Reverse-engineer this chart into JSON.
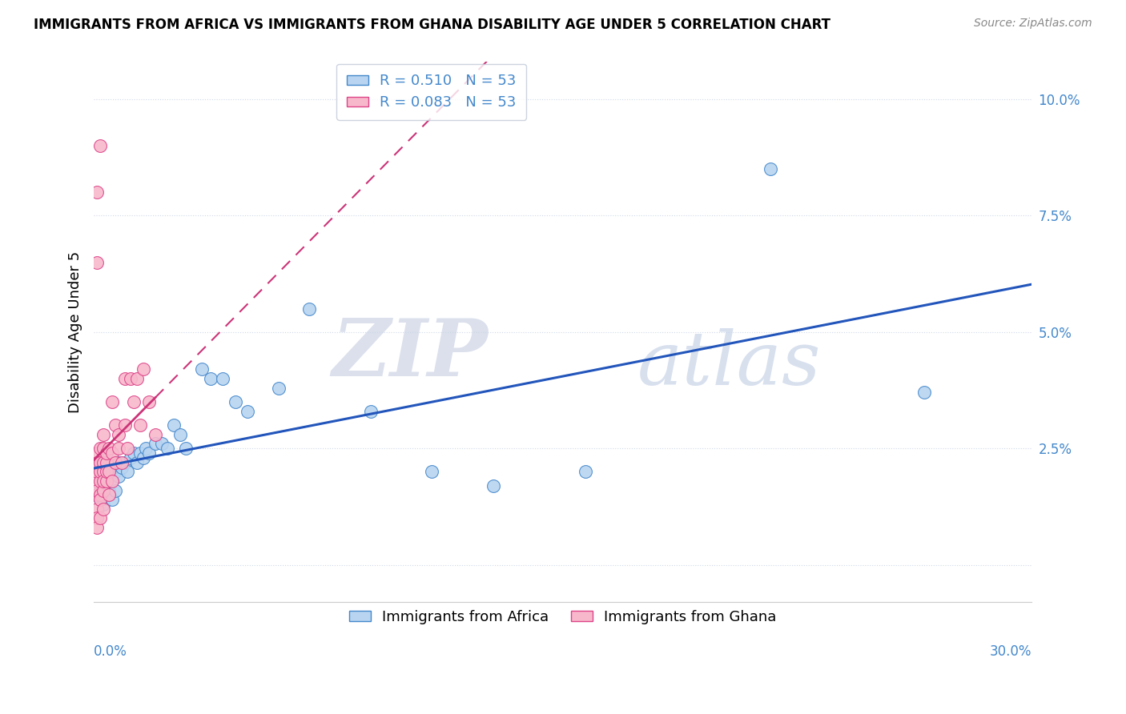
{
  "title": "IMMIGRANTS FROM AFRICA VS IMMIGRANTS FROM GHANA DISABILITY AGE UNDER 5 CORRELATION CHART",
  "source": "Source: ZipAtlas.com",
  "ylabel": "Disability Age Under 5",
  "R_africa": "0.510",
  "R_ghana": "0.083",
  "N_africa": "53",
  "N_ghana": "53",
  "color_africa_fill": "#b8d4f0",
  "color_ghana_fill": "#f8b8cc",
  "color_africa_edge": "#4488cc",
  "color_ghana_edge": "#dd4488",
  "line_color_africa": "#2255bb",
  "line_color_ghana": "#cc3377",
  "tick_color": "#4488cc",
  "watermark_color": "#d4dce8",
  "xlim": [
    0.0,
    0.305
  ],
  "ylim": [
    -0.008,
    0.108
  ],
  "yticks": [
    0.0,
    0.025,
    0.05,
    0.075,
    0.1
  ],
  "ytick_labels": [
    "",
    "2.5%",
    "5.0%",
    "7.5%",
    "10.0%"
  ],
  "legend_label_africa": "Immigrants from Africa",
  "legend_label_ghana": "Immigrants from Ghana",
  "africa_x": [
    0.001,
    0.001,
    0.001,
    0.002,
    0.002,
    0.002,
    0.002,
    0.003,
    0.003,
    0.003,
    0.003,
    0.004,
    0.004,
    0.004,
    0.005,
    0.005,
    0.005,
    0.006,
    0.006,
    0.006,
    0.007,
    0.007,
    0.008,
    0.008,
    0.009,
    0.01,
    0.011,
    0.012,
    0.013,
    0.014,
    0.015,
    0.016,
    0.017,
    0.018,
    0.02,
    0.022,
    0.024,
    0.026,
    0.028,
    0.03,
    0.035,
    0.038,
    0.042,
    0.046,
    0.05,
    0.06,
    0.07,
    0.09,
    0.11,
    0.13,
    0.16,
    0.22,
    0.27
  ],
  "africa_y": [
    0.015,
    0.018,
    0.02,
    0.014,
    0.016,
    0.019,
    0.022,
    0.013,
    0.017,
    0.02,
    0.022,
    0.015,
    0.018,
    0.021,
    0.016,
    0.019,
    0.022,
    0.014,
    0.018,
    0.021,
    0.016,
    0.02,
    0.019,
    0.022,
    0.021,
    0.022,
    0.02,
    0.023,
    0.024,
    0.022,
    0.024,
    0.023,
    0.025,
    0.024,
    0.026,
    0.026,
    0.025,
    0.03,
    0.028,
    0.025,
    0.042,
    0.04,
    0.04,
    0.035,
    0.033,
    0.038,
    0.055,
    0.033,
    0.02,
    0.017,
    0.02,
    0.085,
    0.037
  ],
  "ghana_x": [
    0.001,
    0.001,
    0.001,
    0.001,
    0.001,
    0.001,
    0.001,
    0.001,
    0.001,
    0.001,
    0.001,
    0.002,
    0.002,
    0.002,
    0.002,
    0.002,
    0.002,
    0.002,
    0.003,
    0.003,
    0.003,
    0.003,
    0.003,
    0.003,
    0.003,
    0.004,
    0.004,
    0.004,
    0.004,
    0.005,
    0.005,
    0.005,
    0.006,
    0.006,
    0.006,
    0.007,
    0.007,
    0.008,
    0.008,
    0.009,
    0.01,
    0.01,
    0.011,
    0.012,
    0.013,
    0.014,
    0.015,
    0.016,
    0.018,
    0.02,
    0.001,
    0.001,
    0.002
  ],
  "ghana_y": [
    0.02,
    0.018,
    0.022,
    0.015,
    0.012,
    0.024,
    0.01,
    0.016,
    0.02,
    0.008,
    0.022,
    0.018,
    0.022,
    0.015,
    0.02,
    0.025,
    0.014,
    0.01,
    0.02,
    0.016,
    0.012,
    0.018,
    0.022,
    0.025,
    0.028,
    0.022,
    0.018,
    0.024,
    0.02,
    0.025,
    0.02,
    0.015,
    0.024,
    0.018,
    0.035,
    0.022,
    0.03,
    0.025,
    0.028,
    0.022,
    0.03,
    0.04,
    0.025,
    0.04,
    0.035,
    0.04,
    0.03,
    0.042,
    0.035,
    0.028,
    0.065,
    0.08,
    0.09
  ]
}
